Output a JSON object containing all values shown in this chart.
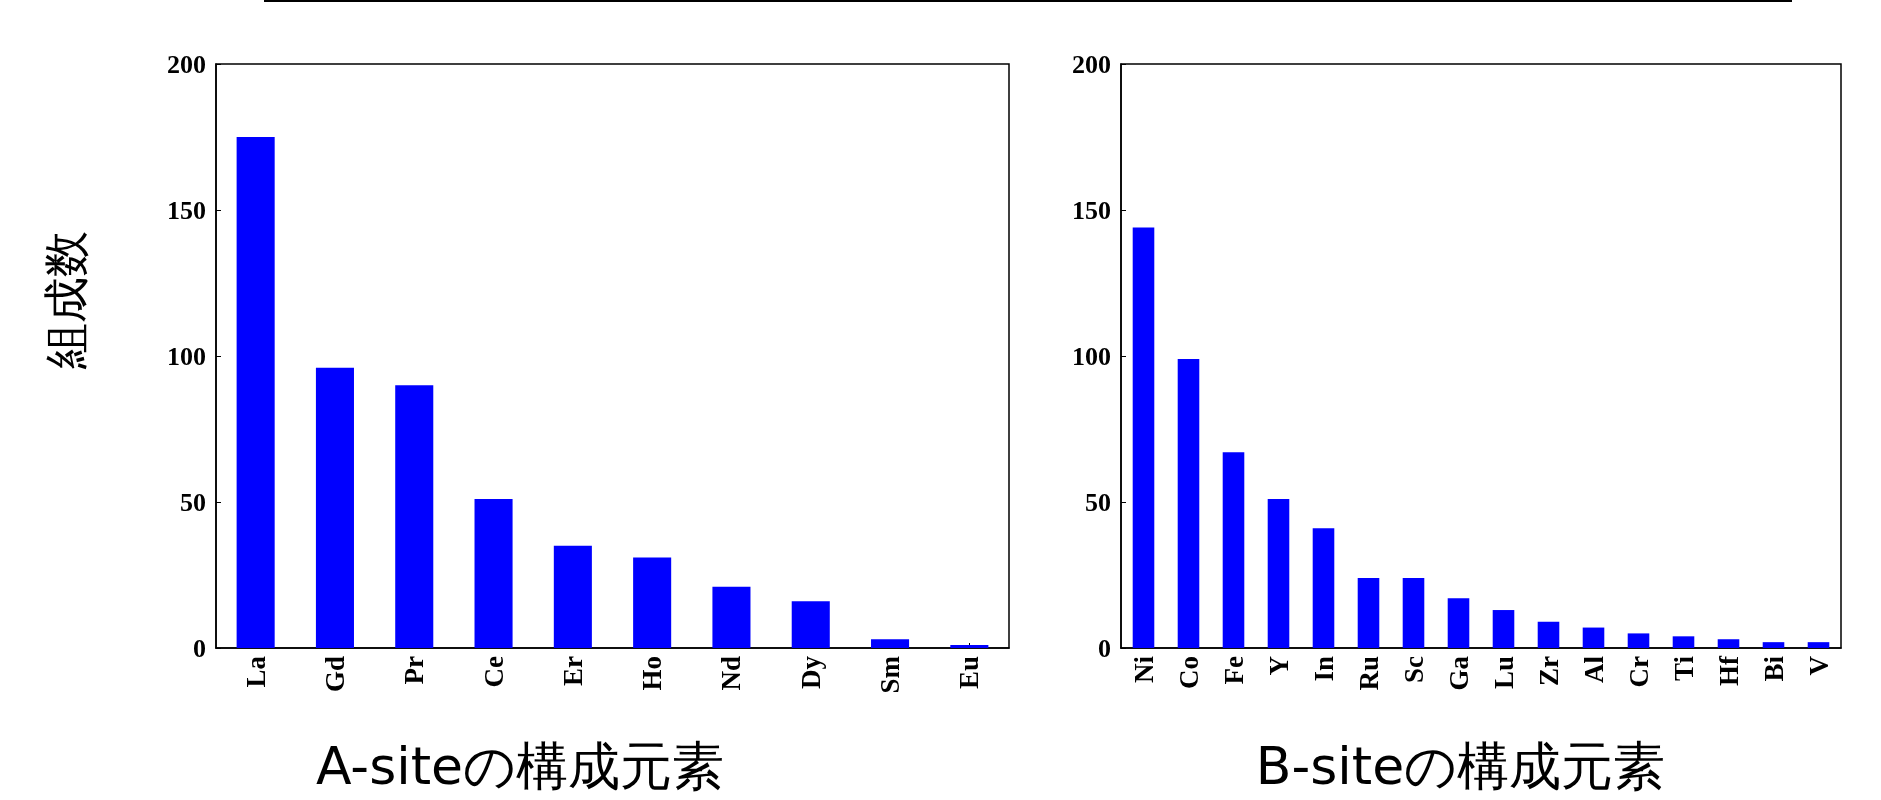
{
  "chart_data": [
    {
      "type": "bar",
      "xlabel": "A-siteの構成元素",
      "ylabel": "組成数",
      "categories": [
        "La",
        "Gd",
        "Pr",
        "Ce",
        "Er",
        "Ho",
        "Nd",
        "Dy",
        "Sm",
        "Eu"
      ],
      "values": [
        175,
        96,
        90,
        51,
        35,
        31,
        21,
        16,
        3,
        1
      ],
      "color": "#0000ff",
      "ylim": [
        0,
        200
      ],
      "yticks": [
        0,
        50,
        100,
        150,
        200
      ],
      "grid": false
    },
    {
      "type": "bar",
      "xlabel": "B-siteの構成元素",
      "categories": [
        "Ni",
        "Co",
        "Fe",
        "Y",
        "In",
        "Ru",
        "Sc",
        "Ga",
        "Lu",
        "Zr",
        "Al",
        "Cr",
        "Ti",
        "Hf",
        "Bi",
        "V"
      ],
      "values": [
        144,
        99,
        67,
        51,
        41,
        24,
        24,
        17,
        13,
        9,
        7,
        5,
        4,
        3,
        2,
        2
      ],
      "color": "#0000ff",
      "ylim": [
        0,
        200
      ],
      "yticks": [
        0,
        50,
        100,
        150,
        200
      ],
      "grid": false
    }
  ]
}
